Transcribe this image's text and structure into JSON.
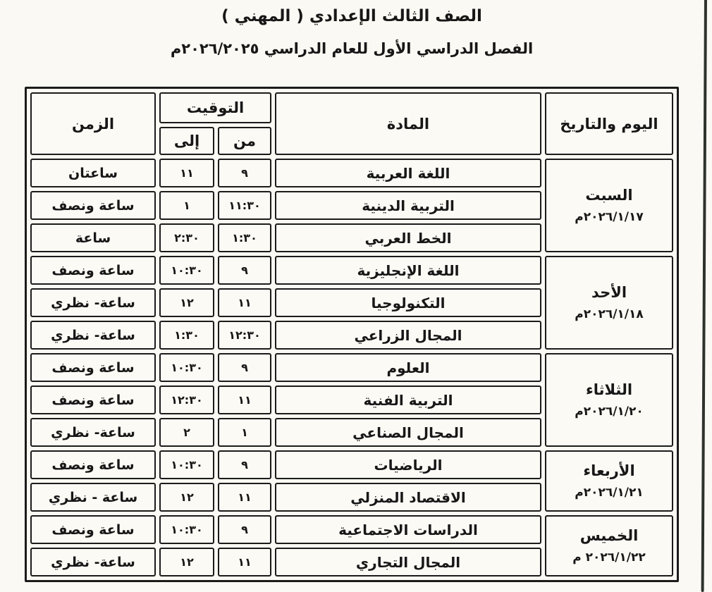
{
  "page": {
    "title_line1": "الصف الثالث الإعدادي ( المهني )",
    "title_line2": "الفصل الدراسي الأول للعام الدراسي ٢٠٢٦/٢٠٢٥م"
  },
  "table": {
    "headers": {
      "day_date": "اليوم والتاريخ",
      "subject": "المادة",
      "timing": "التوقيت",
      "from": "من",
      "to": "إلى",
      "duration": "الزمن"
    },
    "day_groups": [
      {
        "day": "السبت",
        "date": "٢٠٢٦/١/١٧م",
        "rows": [
          {
            "subject": "اللغة العربية",
            "from": "٩",
            "to": "١١",
            "duration": "ساعتان"
          },
          {
            "subject": "التربية الدينية",
            "from": "١١:٣٠",
            "to": "١",
            "duration": "ساعة ونصف"
          },
          {
            "subject": "الخط العربي",
            "from": "١:٣٠",
            "to": "٢:٣٠",
            "duration": "ساعة"
          }
        ]
      },
      {
        "day": "الأحد",
        "date": "٢٠٢٦/١/١٨م",
        "rows": [
          {
            "subject": "اللغة الإنجليزية",
            "from": "٩",
            "to": "١٠:٣٠",
            "duration": "ساعة ونصف"
          },
          {
            "subject": "التكنولوجيا",
            "from": "١١",
            "to": "١٢",
            "duration": "ساعة- نظري"
          },
          {
            "subject": "المجال الزراعي",
            "from": "١٢:٣٠",
            "to": "١:٣٠",
            "duration": "ساعة- نظري"
          }
        ]
      },
      {
        "day": "الثلاثاء",
        "date": "٢٠٢٦/١/٢٠م",
        "rows": [
          {
            "subject": "العلوم",
            "from": "٩",
            "to": "١٠:٣٠",
            "duration": "ساعة ونصف"
          },
          {
            "subject": "التربية الفنية",
            "from": "١١",
            "to": "١٢:٣٠",
            "duration": "ساعة ونصف"
          },
          {
            "subject": "المجال الصناعي",
            "from": "١",
            "to": "٢",
            "duration": "ساعة- نظري"
          }
        ]
      },
      {
        "day": "الأربعاء",
        "date": "٢٠٢٦/١/٢١م",
        "rows": [
          {
            "subject": "الرياضيات",
            "from": "٩",
            "to": "١٠:٣٠",
            "duration": "ساعة ونصف"
          },
          {
            "subject": "الاقتصاد المنزلي",
            "from": "١١",
            "to": "١٢",
            "duration": "ساعة - نظري"
          }
        ]
      },
      {
        "day": "الخميس",
        "date": "٢٠٢٦/١/٢٢ م",
        "rows": [
          {
            "subject": "الدراسات الاجتماعية",
            "from": "٩",
            "to": "١٠:٣٠",
            "duration": "ساعة ونصف"
          },
          {
            "subject": "المجال التجاري",
            "from": "١١",
            "to": "١٢",
            "duration": "ساعة- نظري"
          }
        ]
      }
    ]
  },
  "colors": {
    "paper": "#fbf9f3",
    "ink": "#1b1b1b",
    "scan_edge": "#2e322d"
  }
}
